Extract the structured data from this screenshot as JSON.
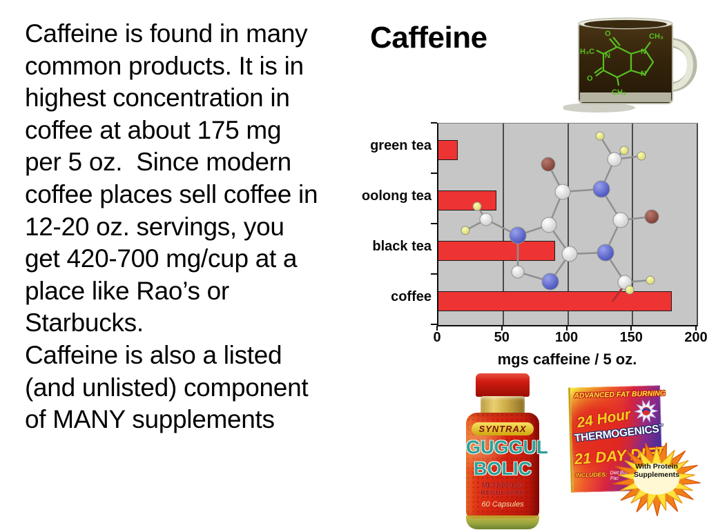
{
  "title": "Caffeine",
  "body": {
    "lines": [
      "Caffeine is found in many",
      "common products. It is in",
      "highest concentration in",
      "coffee at about 175 mg",
      "per 5 oz.  Since modern",
      "coffee places sell coffee in",
      "12-20 oz. servings, you",
      "get 420-700 mg/cup at a",
      "place like Rao’s or",
      "Starbucks.",
      "Caffeine is also a listed",
      "(and unlisted) component",
      "of MANY supplements"
    ]
  },
  "chart_data": {
    "type": "bar",
    "orientation": "horizontal",
    "title": "",
    "categories": [
      "green tea",
      "oolong tea",
      "black tea",
      "coffee"
    ],
    "values": [
      15,
      45,
      90,
      180
    ],
    "xlabel": "mgs caffeine / 5 oz.",
    "xticks": [
      0,
      50,
      100,
      150,
      200
    ],
    "xlim": [
      0,
      200
    ],
    "grid": "vertical gridlines at 50, 100, 150, 200",
    "legend_position": "none",
    "bar_color": "#ee3333",
    "plot_background": "#c6c6c6",
    "background_image": "caffeine ball-and-stick molecule"
  },
  "mug": {
    "labels": {
      "h3c": "H₃C",
      "o_top": "O",
      "o_left": "O",
      "ch3_top": "CH₃",
      "ch3_bottom": "CH₃",
      "n_left": "N",
      "n_top_right": "N",
      "n_bottom_right": "N"
    }
  },
  "products": {
    "bottle": {
      "brand": "SYNTRAX",
      "title_line1": "GUGGUL",
      "title_line2": "BOLIC",
      "subtitle": "METABOLIC REGULATOR",
      "count": "60 Capsules"
    },
    "box": {
      "banner": "ADVANCED FAT BURNING",
      "script_line": "24 Hour",
      "brand": "THERMOGENICS",
      "tm": "™",
      "diet_line": "21 DAY DIET",
      "includes_label": "INCLUDES:",
      "includes_text": "Diet Booklet, Mail Pro-Pac",
      "starburst": "With Protein Supplements"
    }
  },
  "colors": {
    "bar_red": "#ee3333",
    "plot_gray": "#c6c6c6",
    "formula_green": "#58c020"
  }
}
